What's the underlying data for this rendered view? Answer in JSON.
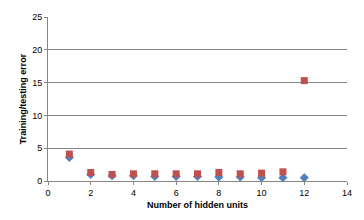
{
  "chart_data": {
    "type": "scatter",
    "x_label": "Number of hidden units",
    "y_label": "Training/testing error",
    "x": [
      1,
      2,
      3,
      4,
      5,
      6,
      7,
      8,
      9,
      10,
      11,
      12
    ],
    "series": [
      {
        "color": "#4f81bd",
        "marker": "diamond",
        "values": [
          3.6,
          1.0,
          0.8,
          0.8,
          0.7,
          0.7,
          0.7,
          0.6,
          0.6,
          0.5,
          0.5,
          0.5
        ]
      },
      {
        "color": "#c0504d",
        "marker": "square",
        "values": [
          4.1,
          1.3,
          1.0,
          1.1,
          1.1,
          1.1,
          1.1,
          1.3,
          1.1,
          1.2,
          1.4,
          15.3
        ]
      }
    ],
    "xlim": [
      0,
      14
    ],
    "xticks": [
      0,
      2,
      4,
      6,
      8,
      10,
      12,
      14
    ],
    "ylim": [
      0,
      25
    ],
    "yticks": [
      0,
      5,
      10,
      15,
      20,
      25
    ],
    "grid": true
  }
}
